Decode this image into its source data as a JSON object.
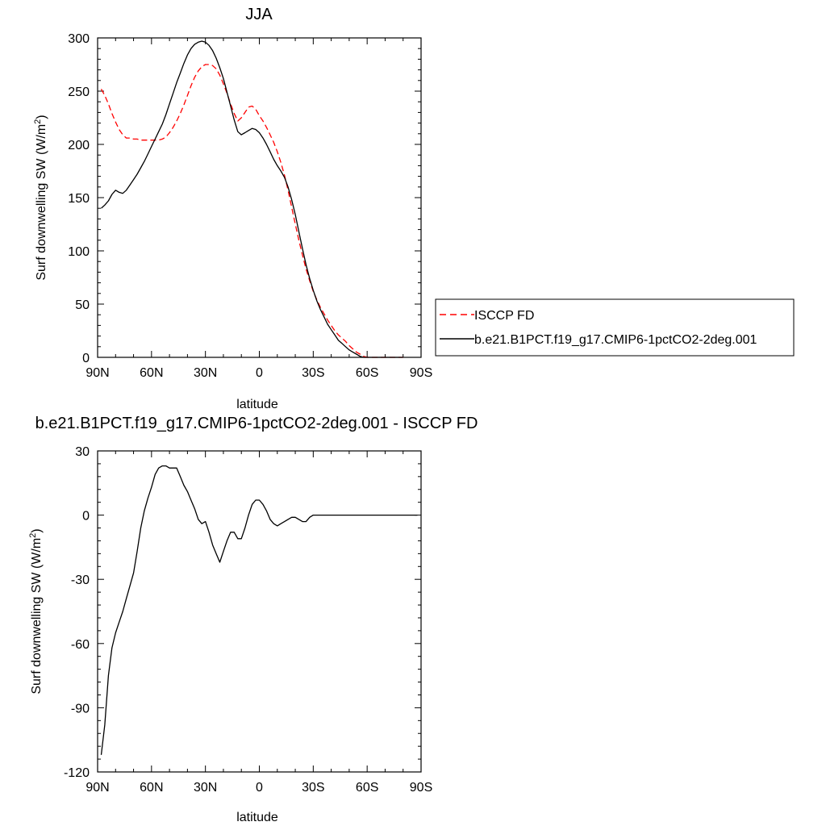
{
  "chart_data": [
    {
      "type": "line",
      "title": "JJA",
      "xlabel": "latitude",
      "ylabel_main": "Surf downwelling SW (W/m",
      "ylabel_sup": "2",
      "ylabel_close": ")",
      "x_unit": "degrees latitude (+N, -S)",
      "xlim": [
        90,
        -90
      ],
      "ylim": [
        0,
        300
      ],
      "xticks": [
        90,
        60,
        30,
        0,
        -30,
        -60,
        -90
      ],
      "xtick_labels": [
        "90N",
        "60N",
        "30N",
        "0",
        "30S",
        "60S",
        "90S"
      ],
      "yticks": [
        0,
        50,
        100,
        150,
        200,
        250,
        300
      ],
      "ytick_labels": [
        "0",
        "50",
        "100",
        "150",
        "200",
        "250",
        "300"
      ],
      "legend_position": "right",
      "series": [
        {
          "name": "ISCCP FD",
          "color": "#ff0000",
          "style": "dashed",
          "x": [
            88,
            86,
            84,
            82,
            80,
            78,
            76,
            74,
            72,
            70,
            68,
            66,
            64,
            62,
            60,
            58,
            56,
            54,
            52,
            50,
            48,
            46,
            44,
            42,
            40,
            38,
            36,
            34,
            32,
            30,
            28,
            26,
            24,
            22,
            20,
            18,
            16,
            14,
            12,
            10,
            8,
            6,
            4,
            2,
            0,
            -2,
            -4,
            -6,
            -8,
            -10,
            -12,
            -14,
            -16,
            -18,
            -20,
            -22,
            -24,
            -26,
            -28,
            -30,
            -32,
            -34,
            -36,
            -38,
            -40,
            -42,
            -44,
            -46,
            -48,
            -50,
            -52,
            -54,
            -56,
            -58,
            -60,
            -62,
            -64,
            -66,
            -68,
            -70,
            -72,
            -74,
            -76,
            -78,
            -80
          ],
          "values": [
            252,
            246,
            238,
            229,
            221,
            214,
            209,
            206,
            206,
            205,
            205,
            204,
            204,
            204,
            204,
            204,
            204,
            205,
            207,
            211,
            216,
            222,
            229,
            237,
            246,
            255,
            263,
            269,
            273,
            275,
            275,
            274,
            271,
            265,
            257,
            248,
            238,
            229,
            222,
            225,
            230,
            235,
            236,
            233,
            227,
            222,
            216,
            209,
            202,
            193,
            183,
            171,
            157,
            141,
            125,
            110,
            96,
            83,
            72,
            62,
            54,
            47,
            41,
            35,
            30,
            25,
            21,
            18,
            15,
            11,
            8,
            5,
            3,
            1,
            0,
            0,
            0,
            0,
            0,
            0,
            0,
            0,
            0,
            0,
            0
          ]
        },
        {
          "name": "b.e21.B1PCT.f19_g17.CMIP6-1pctCO2-2deg.001",
          "color": "#000000",
          "style": "solid",
          "x": [
            88,
            86,
            84,
            82,
            80,
            78,
            76,
            74,
            72,
            70,
            68,
            66,
            64,
            62,
            60,
            58,
            56,
            54,
            52,
            50,
            48,
            46,
            44,
            42,
            40,
            38,
            36,
            34,
            32,
            30,
            28,
            26,
            24,
            22,
            20,
            18,
            16,
            14,
            12,
            10,
            8,
            6,
            4,
            2,
            0,
            -2,
            -4,
            -6,
            -8,
            -10,
            -12,
            -14,
            -16,
            -18,
            -20,
            -22,
            -24,
            -26,
            -28,
            -30,
            -32,
            -34,
            -36,
            -38,
            -40,
            -42,
            -44,
            -46,
            -48,
            -50,
            -52,
            -54,
            -56,
            -58,
            -60,
            -62,
            -64,
            -66,
            -68,
            -70,
            -72,
            -74,
            -76,
            -78,
            -80
          ],
          "values": [
            140,
            143,
            147,
            153,
            157,
            155,
            154,
            157,
            162,
            167,
            172,
            178,
            184,
            191,
            198,
            205,
            212,
            219,
            228,
            238,
            248,
            258,
            267,
            276,
            284,
            290,
            294,
            296,
            297,
            296,
            293,
            288,
            281,
            272,
            262,
            249,
            236,
            223,
            212,
            209,
            211,
            213,
            215,
            214,
            211,
            206,
            200,
            193,
            186,
            180,
            175,
            169,
            160,
            148,
            134,
            118,
            102,
            87,
            74,
            63,
            53,
            45,
            38,
            31,
            26,
            21,
            16,
            13,
            10,
            7,
            5,
            3,
            1,
            0,
            0,
            0,
            0,
            0,
            0,
            0,
            0,
            0,
            0,
            0,
            0
          ]
        }
      ]
    },
    {
      "type": "line",
      "title": "b.e21.B1PCT.f19_g17.CMIP6-1pctCO2-2deg.001 - ISCCP FD",
      "xlabel": "latitude",
      "ylabel_main": "Surf downwelling SW (W/m",
      "ylabel_sup": "2",
      "ylabel_close": ")",
      "x_unit": "degrees latitude (+N, -S)",
      "xlim": [
        90,
        -90
      ],
      "ylim": [
        -120,
        30
      ],
      "xticks": [
        90,
        60,
        30,
        0,
        -30,
        -60,
        -90
      ],
      "xtick_labels": [
        "90N",
        "60N",
        "30N",
        "0",
        "30S",
        "60S",
        "90S"
      ],
      "yticks": [
        -120,
        -90,
        -60,
        -30,
        0,
        30
      ],
      "ytick_labels": [
        "-120",
        "-90",
        "-60",
        "-30",
        "0",
        "30"
      ],
      "series": [
        {
          "color": "#000000",
          "style": "solid",
          "x": [
            88,
            86,
            84,
            82,
            80,
            78,
            76,
            74,
            72,
            70,
            68,
            66,
            64,
            62,
            60,
            58,
            56,
            54,
            52,
            50,
            48,
            46,
            44,
            42,
            40,
            38,
            36,
            34,
            32,
            30,
            28,
            26,
            24,
            22,
            20,
            18,
            16,
            14,
            12,
            10,
            8,
            6,
            4,
            2,
            0,
            -2,
            -4,
            -6,
            -8,
            -10,
            -12,
            -14,
            -16,
            -18,
            -20,
            -22,
            -24,
            -26,
            -28,
            -30,
            -32,
            -34,
            -36,
            -38,
            -40,
            -42,
            -44,
            -46,
            -48,
            -50,
            -52,
            -54,
            -56,
            -58,
            -60,
            -62,
            -64,
            -66,
            -68,
            -70,
            -72,
            -74,
            -76,
            -78,
            -80,
            -82,
            -84,
            -86,
            -88
          ],
          "values": [
            -112,
            -98,
            -75,
            -62,
            -55,
            -50,
            -45,
            -39,
            -33,
            -27,
            -17,
            -6,
            2,
            8,
            13,
            19,
            22,
            23,
            23,
            22,
            22,
            22,
            18,
            14,
            11,
            7,
            3,
            -2,
            -4,
            -3,
            -8,
            -14,
            -18,
            -22,
            -17,
            -12,
            -8,
            -8,
            -11,
            -11,
            -6,
            0,
            5,
            7,
            7,
            5,
            2,
            -2,
            -4,
            -5,
            -4,
            -3,
            -2,
            -1,
            -1,
            -2,
            -3,
            -3,
            -1,
            0,
            0,
            0,
            0,
            0,
            0,
            0,
            0,
            0,
            0,
            0,
            0,
            0,
            0,
            0,
            0,
            0,
            0,
            0,
            0,
            0,
            0,
            0,
            0,
            0,
            0,
            0,
            0,
            0,
            0
          ]
        }
      ]
    }
  ]
}
